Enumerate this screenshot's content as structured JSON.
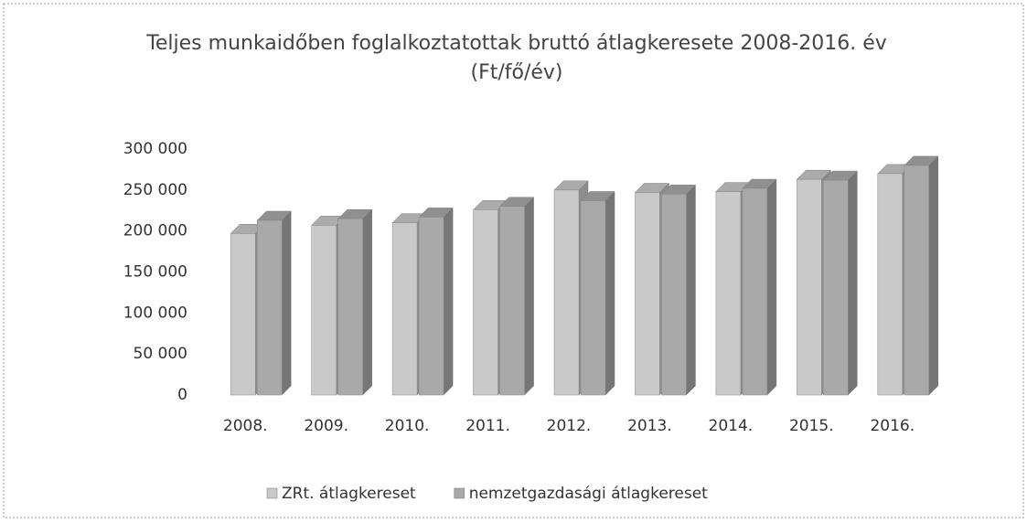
{
  "chart_data": {
    "type": "bar3d",
    "title": "Teljes munkaidőben foglalkoztatottak bruttó átlagkeresete 2008-2016. év",
    "subtitle": "(Ft/fő/év)",
    "categories": [
      "2008.",
      "2009.",
      "2010.",
      "2011.",
      "2012.",
      "2013.",
      "2014.",
      "2015.",
      "2016."
    ],
    "series": [
      {
        "name": "ZRt. átlagkereset",
        "color": "#c9c9c9",
        "values": [
          197000,
          207000,
          210000,
          226000,
          250000,
          247000,
          248000,
          263000,
          270000
        ]
      },
      {
        "name": "nemzetgazdasági átlagkereset",
        "color": "#a9a9a9",
        "values": [
          213000,
          215000,
          217000,
          230000,
          237000,
          245000,
          252000,
          262000,
          280000
        ]
      }
    ],
    "ylim": [
      0,
      300000
    ],
    "yticks": [
      0,
      {
        "value": 50000,
        "label": "50 000"
      },
      {
        "value": 100000,
        "label": "100 000"
      },
      {
        "value": 150000,
        "label": "150 000"
      },
      {
        "value": 200000,
        "label": "200 000"
      },
      {
        "value": 250000,
        "label": "250 000"
      },
      {
        "value": 300000,
        "label": "300 000"
      }
    ],
    "grid": false,
    "legend": "bottom"
  }
}
